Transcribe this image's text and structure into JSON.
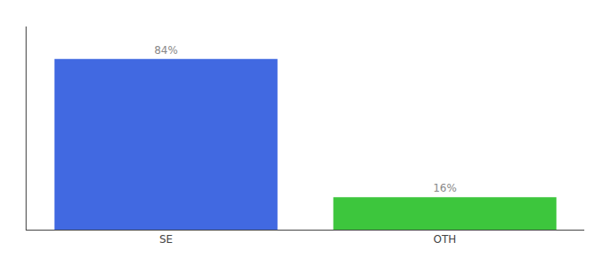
{
  "chart_data": {
    "type": "bar",
    "categories": [
      "SE",
      "OTH"
    ],
    "values": [
      84,
      16
    ],
    "value_labels": [
      "84%",
      "16%"
    ],
    "colors": [
      "#4169e1",
      "#3dc63d"
    ],
    "ylim": [
      0,
      100
    ],
    "data_labels": true,
    "tick_labels": "x",
    "grid": false
  }
}
